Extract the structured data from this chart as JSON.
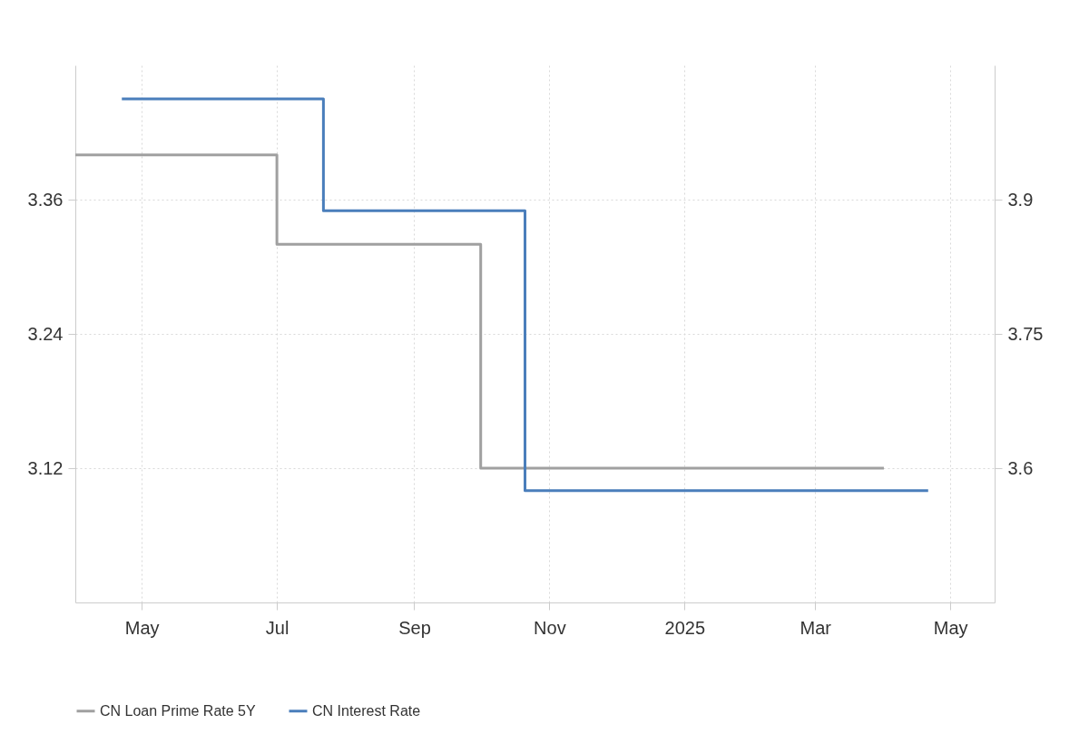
{
  "chart_data": {
    "type": "step",
    "xlim": [
      "2024-04-01",
      "2025-05-21"
    ],
    "xticks": [
      {
        "value": "2024-05-01",
        "label": "May"
      },
      {
        "value": "2024-07-01",
        "label": "Jul"
      },
      {
        "value": "2024-09-01",
        "label": "Sep"
      },
      {
        "value": "2024-11-01",
        "label": "Nov"
      },
      {
        "value": "2025-01-01",
        "label": "2025"
      },
      {
        "value": "2025-03-01",
        "label": "Mar"
      },
      {
        "value": "2025-05-01",
        "label": "May"
      }
    ],
    "ylim": [
      3.0,
      3.48
    ],
    "yticks": [
      3.12,
      3.24,
      3.36
    ],
    "y2lim": [
      3.45,
      4.05
    ],
    "y2ticks": [
      3.6,
      3.75,
      3.9
    ],
    "grid": true,
    "legend": "bottom",
    "series": [
      {
        "name": "CN Loan Prime Rate 5Y",
        "color": "#a0a0a0",
        "axis": "y2",
        "x": [
          "2024-04-01",
          "2024-07-01",
          "2024-10-01",
          "2025-04-01"
        ],
        "values": [
          3.95,
          3.85,
          3.6,
          3.6
        ]
      },
      {
        "name": "CN Interest Rate",
        "color": "#4a7ebb",
        "axis": "y",
        "x": [
          "2024-04-22",
          "2024-07-22",
          "2024-10-21",
          "2025-04-21"
        ],
        "values": [
          3.45,
          3.35,
          3.1,
          3.1
        ]
      }
    ]
  }
}
